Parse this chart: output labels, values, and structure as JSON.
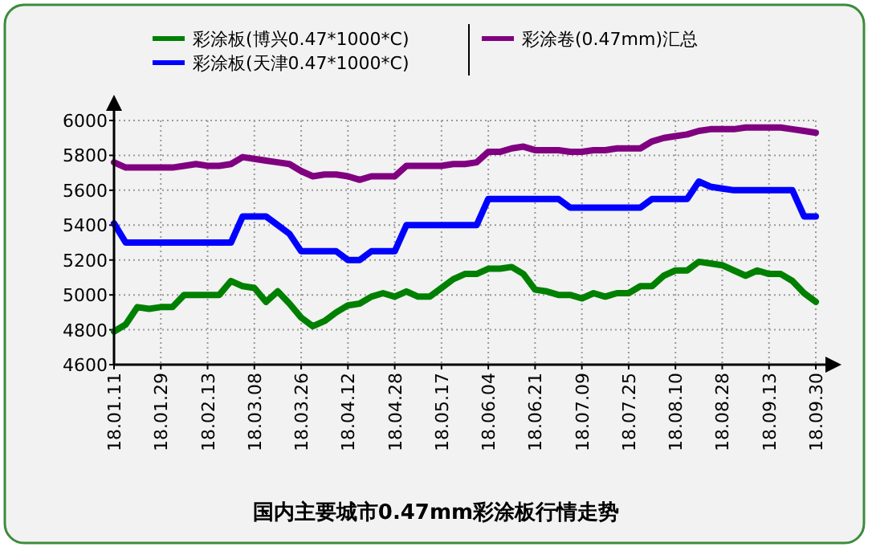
{
  "chart_data": {
    "type": "line",
    "title": "国内主要城市0.47mm彩涂板行情走势",
    "categories": [
      "18.01.11",
      null,
      null,
      null,
      "18.01.29",
      null,
      null,
      null,
      "18.02.13",
      null,
      null,
      null,
      "18.03.08",
      null,
      null,
      null,
      "18.03.26",
      null,
      null,
      null,
      "18.04.12",
      null,
      null,
      null,
      "18.04.28",
      null,
      null,
      null,
      "18.05.17",
      null,
      null,
      null,
      "18.06.04",
      null,
      null,
      null,
      "18.06.21",
      null,
      null,
      null,
      "18.07.09",
      null,
      null,
      null,
      "18.07.25",
      null,
      null,
      null,
      "18.08.10",
      null,
      null,
      null,
      "18.08.28",
      null,
      null,
      null,
      "18.09.13",
      null,
      null,
      null,
      "18.09.30"
    ],
    "series": [
      {
        "name": "彩涂板(博兴0.47*1000*C)",
        "color": "#008000",
        "values": [
          4790,
          4830,
          4930,
          4920,
          4930,
          4930,
          5000,
          5000,
          5000,
          5000,
          5080,
          5050,
          5040,
          4960,
          5020,
          4950,
          4870,
          4820,
          4850,
          4900,
          4940,
          4950,
          4990,
          5010,
          4990,
          5020,
          4990,
          4990,
          5040,
          5090,
          5120,
          5120,
          5150,
          5150,
          5160,
          5120,
          5030,
          5020,
          5000,
          5000,
          4980,
          5010,
          4990,
          5010,
          5010,
          5050,
          5050,
          5110,
          5140,
          5140,
          5190,
          5180,
          5170,
          5140,
          5110,
          5140,
          5120,
          5120,
          5080,
          5010,
          4960
        ]
      },
      {
        "name": "彩涂板(天津0.47*1000*C)",
        "color": "#0000ff",
        "values": [
          5410,
          5300,
          5300,
          5300,
          5300,
          5300,
          5300,
          5300,
          5300,
          5300,
          5300,
          5450,
          5450,
          5450,
          5400,
          5350,
          5250,
          5250,
          5250,
          5250,
          5200,
          5200,
          5250,
          5250,
          5250,
          5400,
          5400,
          5400,
          5400,
          5400,
          5400,
          5400,
          5550,
          5550,
          5550,
          5550,
          5550,
          5550,
          5550,
          5500,
          5500,
          5500,
          5500,
          5500,
          5500,
          5500,
          5550,
          5550,
          5550,
          5550,
          5650,
          5620,
          5610,
          5600,
          5600,
          5600,
          5600,
          5600,
          5600,
          5450,
          5450
        ]
      },
      {
        "name": "彩涂卷(0.47mm)汇总",
        "color": "#800080",
        "values": [
          5760,
          5730,
          5730,
          5730,
          5730,
          5730,
          5740,
          5750,
          5740,
          5740,
          5750,
          5790,
          5780,
          5770,
          5760,
          5750,
          5710,
          5680,
          5690,
          5690,
          5680,
          5660,
          5680,
          5680,
          5680,
          5740,
          5740,
          5740,
          5740,
          5750,
          5750,
          5760,
          5820,
          5820,
          5840,
          5850,
          5830,
          5830,
          5830,
          5820,
          5820,
          5830,
          5830,
          5840,
          5840,
          5840,
          5880,
          5900,
          5910,
          5920,
          5940,
          5950,
          5950,
          5950,
          5960,
          5960,
          5960,
          5960,
          5950,
          5940,
          5930
        ]
      }
    ],
    "ylim": [
      4600,
      6000
    ],
    "yticks": [
      4600,
      4800,
      5000,
      5200,
      5400,
      5600,
      5800,
      6000
    ],
    "grid": true,
    "legend": "top",
    "line_style": "solid",
    "marker": "none"
  }
}
